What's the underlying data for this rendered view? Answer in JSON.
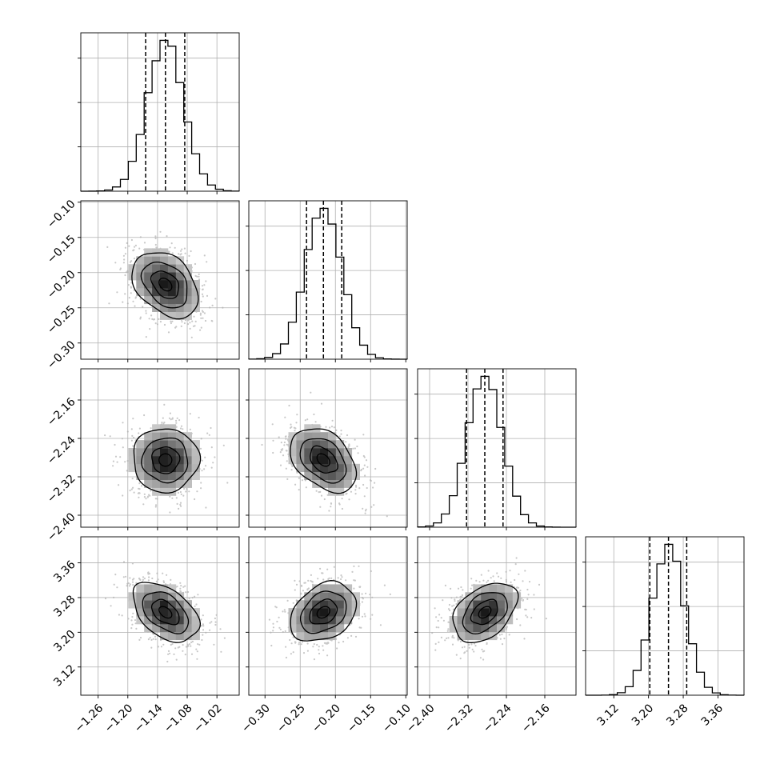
{
  "chart_data": {
    "type": "corner",
    "grid": true,
    "quantile_lines": [
      0.16,
      0.5,
      0.84
    ],
    "colors": {
      "line": "#000000",
      "grid": "#b0b0b0",
      "scatter": "#9a9a9a"
    },
    "parameters": [
      {
        "range": [
          -1.295,
          -0.975
        ],
        "mean": -1.124,
        "sd": 0.037,
        "quantiles": [
          -1.164,
          -1.124,
          -1.085
        ],
        "ticks": [
          -1.26,
          -1.2,
          -1.14,
          -1.08,
          -1.02
        ],
        "tick_labels": [
          "−1.26",
          "−1.20",
          "−1.14",
          "−1.08",
          "−1.02"
        ]
      },
      {
        "range": [
          -0.323,
          -0.098
        ],
        "mean": -0.217,
        "sd": 0.026,
        "quantiles": [
          -0.241,
          -0.217,
          -0.191
        ],
        "ticks": [
          -0.3,
          -0.25,
          -0.2,
          -0.15,
          -0.1
        ],
        "tick_labels": [
          "−0.30",
          "−0.25",
          "−0.20",
          "−0.15",
          "−0.10"
        ]
      },
      {
        "range": [
          -2.425,
          -2.095
        ],
        "mean": -2.285,
        "sd": 0.037,
        "quantiles": [
          -2.323,
          -2.285,
          -2.247
        ],
        "ticks": [
          -2.4,
          -2.32,
          -2.24,
          -2.16
        ],
        "tick_labels": [
          "−2.40",
          "−2.32",
          "−2.24",
          "−2.16"
        ]
      },
      {
        "range": [
          3.055,
          3.42
        ],
        "mean": 3.246,
        "sd": 0.038,
        "quantiles": [
          3.203,
          3.246,
          3.288
        ],
        "ticks": [
          3.12,
          3.2,
          3.28,
          3.36
        ],
        "tick_labels": [
          "3.12",
          "3.20",
          "3.28",
          "3.36"
        ]
      }
    ],
    "correlations": [
      {
        "pair": [
          1,
          0
        ],
        "rho": -0.35
      },
      {
        "pair": [
          2,
          0
        ],
        "rho": 0.0
      },
      {
        "pair": [
          2,
          1
        ],
        "rho": -0.38
      },
      {
        "pair": [
          3,
          0
        ],
        "rho": -0.45
      },
      {
        "pair": [
          3,
          1
        ],
        "rho": 0.3
      },
      {
        "pair": [
          3,
          2
        ],
        "rho": 0.4
      }
    ]
  }
}
